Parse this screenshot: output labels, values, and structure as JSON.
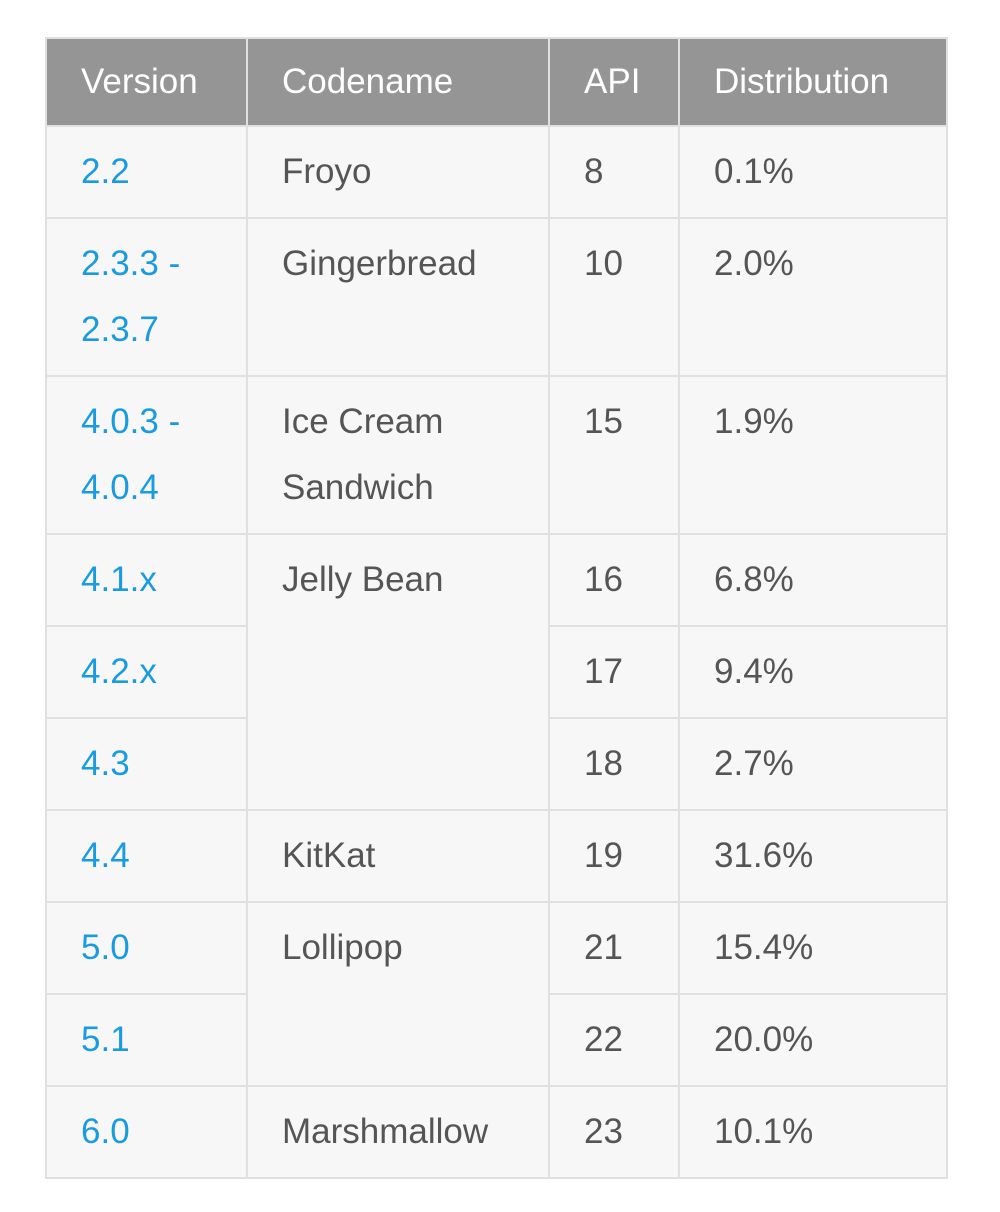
{
  "headers": {
    "version": "Version",
    "codename": "Codename",
    "api": "API",
    "distribution": "Distribution"
  },
  "rows": [
    {
      "version": "2.2",
      "codename": "Froyo",
      "api": "8",
      "distribution": "0.1%"
    },
    {
      "version": "2.3.3 - 2.3.7",
      "codename": "Gingerbread",
      "api": "10",
      "distribution": "2.0%"
    },
    {
      "version": "4.0.3 - 4.0.4",
      "codename": "Ice Cream Sandwich",
      "api": "15",
      "distribution": "1.9%"
    },
    {
      "version": "4.1.x",
      "codename": "Jelly Bean",
      "api": "16",
      "distribution": "6.8%"
    },
    {
      "version": "4.2.x",
      "codename": "",
      "api": "17",
      "distribution": "9.4%"
    },
    {
      "version": "4.3",
      "codename": "",
      "api": "18",
      "distribution": "2.7%"
    },
    {
      "version": "4.4",
      "codename": "KitKat",
      "api": "19",
      "distribution": "31.6%"
    },
    {
      "version": "5.0",
      "codename": "Lollipop",
      "api": "21",
      "distribution": "15.4%"
    },
    {
      "version": "5.1",
      "codename": "",
      "api": "22",
      "distribution": "20.0%"
    },
    {
      "version": "6.0",
      "codename": "Marshmallow",
      "api": "23",
      "distribution": "10.1%"
    }
  ],
  "colors": {
    "header_bg": "#959595",
    "header_text": "#ffffff",
    "link": "#1a9be0",
    "cell_text": "#555555",
    "cell_bg": "#f7f7f7",
    "border": "#e0e0e0"
  }
}
